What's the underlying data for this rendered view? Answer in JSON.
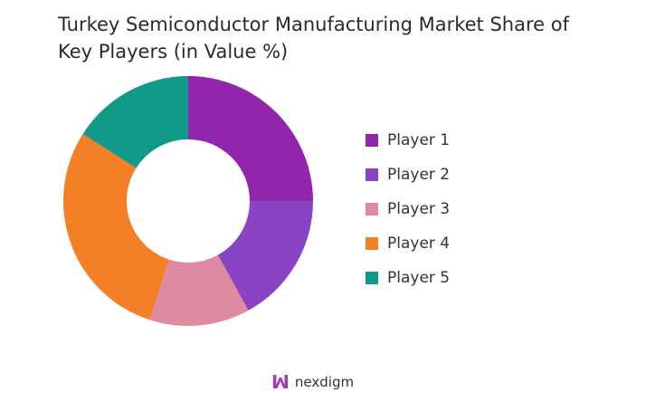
{
  "chart_data": {
    "type": "pie",
    "donut": true,
    "title": "Turkey Semiconductor Manufacturing Market Share of Key Players (in Value %)",
    "categories": [
      "Player 1",
      "Player 2",
      "Player 3",
      "Player 4",
      "Player 5"
    ],
    "values": [
      25,
      17,
      13,
      29,
      16
    ],
    "colors": [
      "#9126AD",
      "#8A43C3",
      "#E08AA2",
      "#F47F26",
      "#119A8A"
    ],
    "legend": "right"
  },
  "brand": {
    "name": "nexdigm"
  }
}
